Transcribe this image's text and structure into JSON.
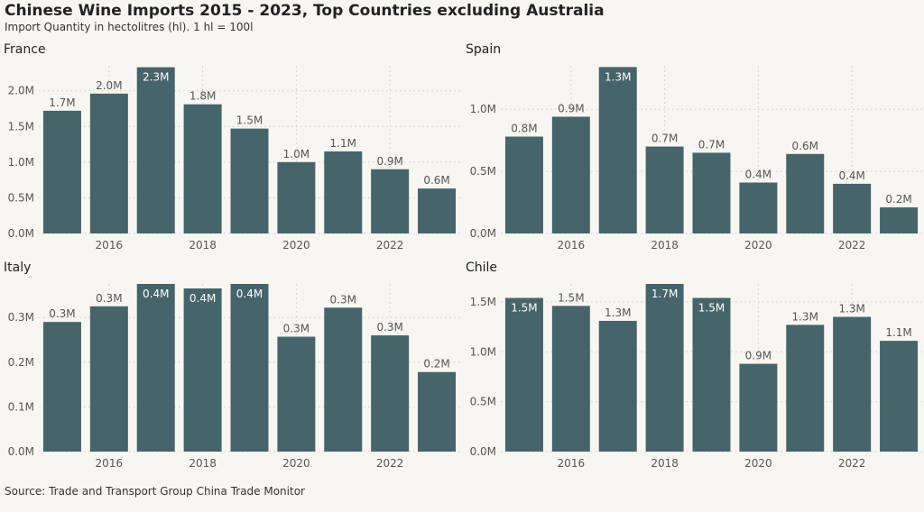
{
  "title": "Chinese Wine Imports 2015 - 2023, Top Countries excluding Australia",
  "subtitle": "Import Quantity in hectolitres (hl). 1 hl = 100l",
  "source": "Source: Trade and Transport Group China Trade Monitor",
  "colors": {
    "bar": "#46656b",
    "background": "#f8f6f1",
    "label_outside": "#555555",
    "label_inside": "#ffffff"
  },
  "chart_data": [
    {
      "type": "bar",
      "title": "France",
      "x": [
        2015,
        2016,
        2017,
        2018,
        2019,
        2020,
        2021,
        2022,
        2023
      ],
      "values": [
        1.72,
        1.96,
        2.33,
        1.81,
        1.47,
        1.0,
        1.15,
        0.9,
        0.63
      ],
      "data_labels": [
        "1.7M",
        "2.0M",
        "2.3M",
        "1.8M",
        "1.5M",
        "1.0M",
        "1.1M",
        "0.9M",
        "0.6M"
      ],
      "label_inside": [
        false,
        false,
        true,
        false,
        false,
        false,
        false,
        false,
        false
      ],
      "ylim": [
        0,
        2.35
      ],
      "y_ticks": [
        0,
        0.5,
        1.0,
        1.5,
        2.0
      ],
      "y_tick_labels": [
        "0.0M",
        "0.5M",
        "1.0M",
        "1.5M",
        "2.0M"
      ],
      "x_ticks": [
        2016,
        2018,
        2020,
        2022
      ],
      "x_tick_labels": [
        "2016",
        "2018",
        "2020",
        "2022"
      ]
    },
    {
      "type": "bar",
      "title": "Spain",
      "x": [
        2015,
        2016,
        2017,
        2018,
        2019,
        2020,
        2021,
        2022,
        2023
      ],
      "values": [
        0.78,
        0.94,
        1.34,
        0.7,
        0.65,
        0.41,
        0.64,
        0.4,
        0.21
      ],
      "data_labels": [
        "0.8M",
        "0.9M",
        "1.3M",
        "0.7M",
        "0.7M",
        "0.4M",
        "0.6M",
        "0.4M",
        "0.2M"
      ],
      "label_inside": [
        false,
        false,
        true,
        false,
        false,
        false,
        false,
        false,
        false
      ],
      "ylim": [
        0,
        1.35
      ],
      "y_ticks": [
        0,
        0.5,
        1.0
      ],
      "y_tick_labels": [
        "0.0M",
        "0.5M",
        "1.0M"
      ],
      "x_ticks": [
        2016,
        2018,
        2020,
        2022
      ],
      "x_tick_labels": [
        "2016",
        "2018",
        "2020",
        "2022"
      ]
    },
    {
      "type": "bar",
      "title": "Italy",
      "x": [
        2015,
        2016,
        2017,
        2018,
        2019,
        2020,
        2021,
        2022,
        2023
      ],
      "values": [
        0.29,
        0.325,
        0.375,
        0.365,
        0.375,
        0.257,
        0.322,
        0.26,
        0.178
      ],
      "data_labels": [
        "0.3M",
        "0.3M",
        "0.4M",
        "0.4M",
        "0.4M",
        "0.3M",
        "0.3M",
        "0.3M",
        "0.2M"
      ],
      "label_inside": [
        false,
        false,
        true,
        true,
        true,
        false,
        false,
        false,
        false
      ],
      "ylim": [
        0,
        0.375
      ],
      "y_ticks": [
        0,
        0.1,
        0.2,
        0.3
      ],
      "y_tick_labels": [
        "0.0M",
        "0.1M",
        "0.2M",
        "0.3M"
      ],
      "x_ticks": [
        2016,
        2018,
        2020,
        2022
      ],
      "x_tick_labels": [
        "2016",
        "2018",
        "2020",
        "2022"
      ]
    },
    {
      "type": "bar",
      "title": "Chile",
      "x": [
        2015,
        2016,
        2017,
        2018,
        2019,
        2020,
        2021,
        2022,
        2023
      ],
      "values": [
        1.54,
        1.46,
        1.31,
        1.68,
        1.54,
        0.88,
        1.27,
        1.35,
        1.11
      ],
      "data_labels": [
        "1.5M",
        "1.5M",
        "1.3M",
        "1.7M",
        "1.5M",
        "0.9M",
        "1.3M",
        "1.3M",
        "1.1M"
      ],
      "label_inside": [
        true,
        false,
        false,
        true,
        true,
        false,
        false,
        false,
        false
      ],
      "ylim": [
        0,
        1.68
      ],
      "y_ticks": [
        0,
        0.5,
        1.0,
        1.5
      ],
      "y_tick_labels": [
        "0.0M",
        "0.5M",
        "1.0M",
        "1.5M"
      ],
      "x_ticks": [
        2016,
        2018,
        2020,
        2022
      ],
      "x_tick_labels": [
        "2016",
        "2018",
        "2020",
        "2022"
      ]
    }
  ]
}
